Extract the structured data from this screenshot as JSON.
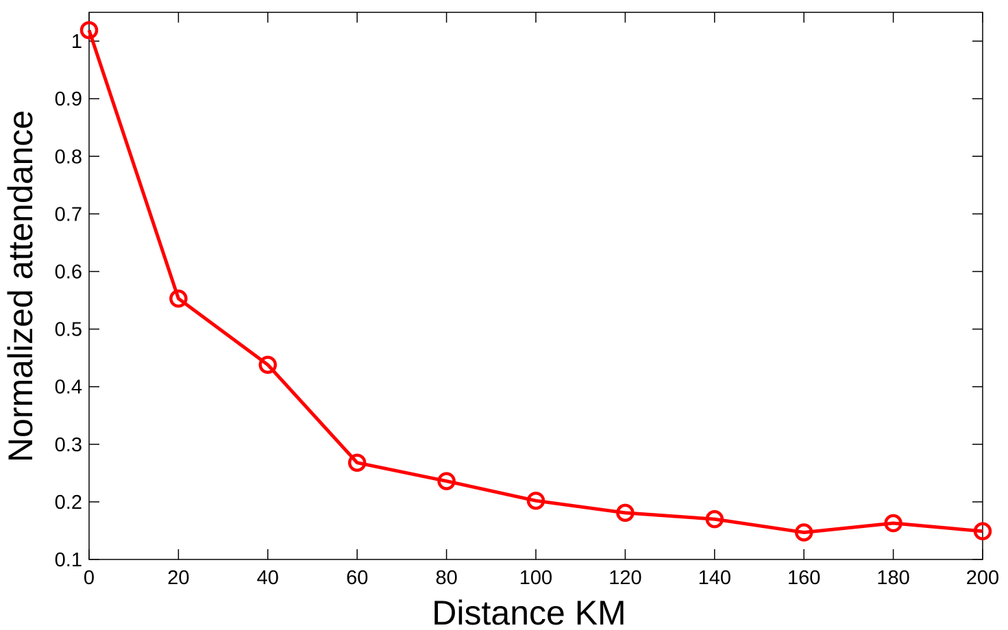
{
  "chart_data": {
    "type": "line",
    "title": "",
    "xlabel": "Distance KM",
    "ylabel": "Normalized attendance",
    "xlim": [
      0,
      200
    ],
    "ylim": [
      0.1,
      1.05
    ],
    "x_ticks": [
      "0",
      "20",
      "40",
      "60",
      "80",
      "100",
      "120",
      "140",
      "160",
      "180",
      "200"
    ],
    "y_ticks": [
      "0.1",
      "0.2",
      "0.3",
      "0.4",
      "0.5",
      "0.6",
      "0.7",
      "0.8",
      "0.9",
      "1"
    ],
    "grid": false,
    "legend": "none",
    "series": [
      {
        "color": "#ff0000",
        "marker": "circle-open",
        "x": [
          0,
          20,
          40,
          60,
          80,
          100,
          120,
          140,
          160,
          180,
          200
        ],
        "y": [
          1.019,
          0.553,
          0.438,
          0.268,
          0.236,
          0.202,
          0.181,
          0.17,
          0.147,
          0.163,
          0.149
        ]
      }
    ]
  }
}
